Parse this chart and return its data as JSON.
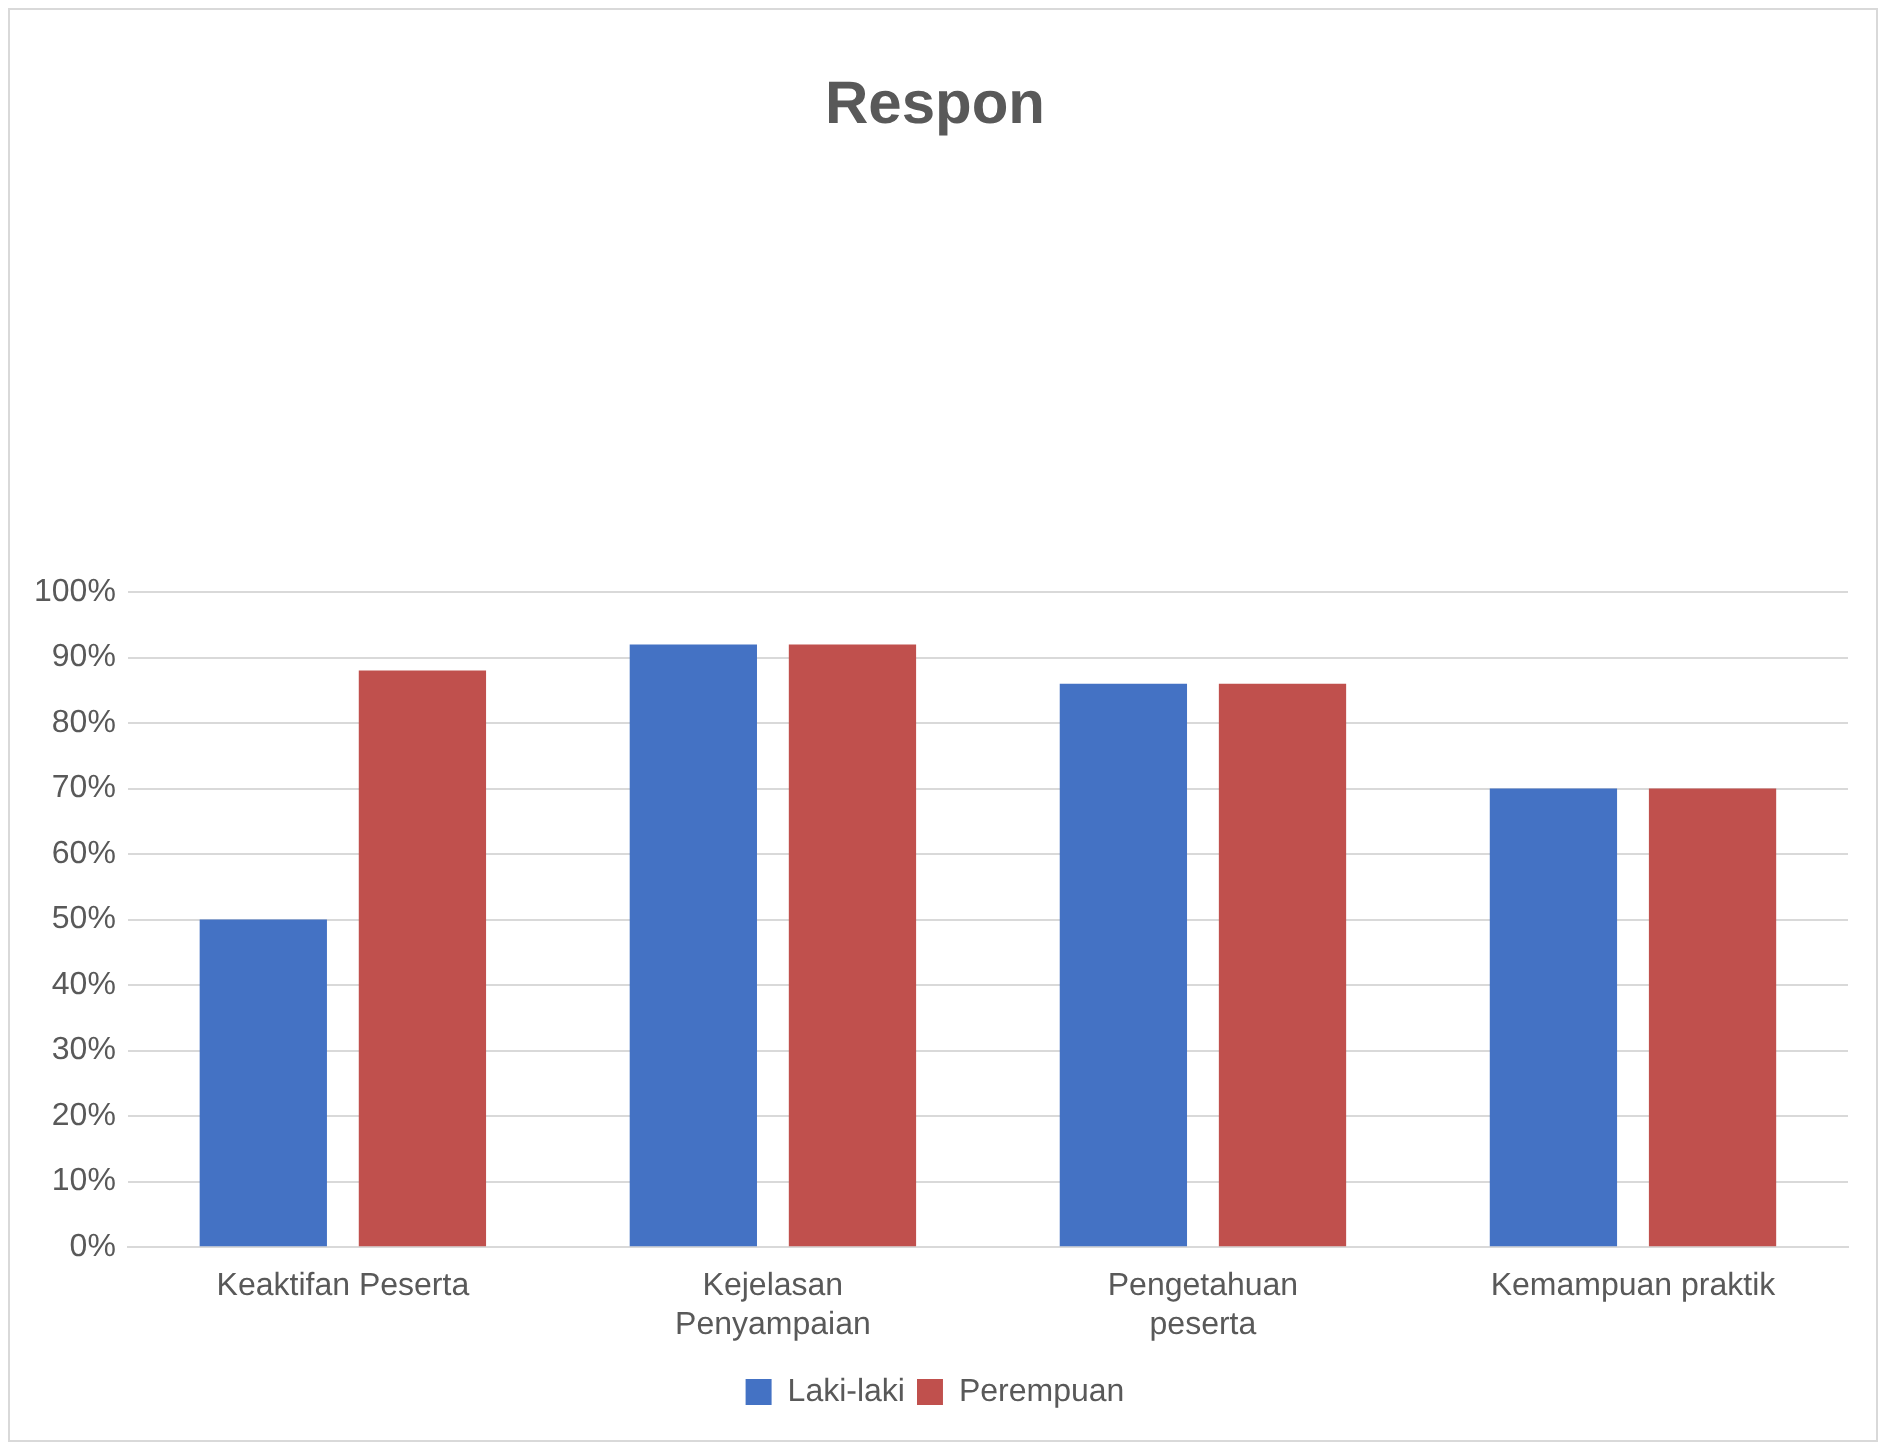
{
  "chart_data": {
    "type": "bar",
    "title": "Respon",
    "categories": [
      "Keaktifan Peserta",
      "Kejelasan Penyampaian",
      "Pengetahuan peserta",
      "Kemampuan praktik"
    ],
    "series": [
      {
        "name": "Laki-laki",
        "color": "#4472c4",
        "values": [
          50,
          92,
          86,
          70
        ]
      },
      {
        "name": "Perempuan",
        "color": "#c0504d",
        "values": [
          88,
          92,
          86,
          70
        ]
      }
    ],
    "ylim": [
      0,
      100
    ],
    "yticks": [
      {
        "value": 0,
        "label": "0%"
      },
      {
        "value": 10,
        "label": "10%"
      },
      {
        "value": 20,
        "label": "20%"
      },
      {
        "value": 30,
        "label": "30%"
      },
      {
        "value": 40,
        "label": "40%"
      },
      {
        "value": 50,
        "label": "50%"
      },
      {
        "value": 60,
        "label": "60%"
      },
      {
        "value": 70,
        "label": "70%"
      },
      {
        "value": 80,
        "label": "80%"
      },
      {
        "value": 90,
        "label": "90%"
      },
      {
        "value": 100,
        "label": "100%"
      }
    ],
    "grid": "y",
    "legend": "bottom"
  }
}
